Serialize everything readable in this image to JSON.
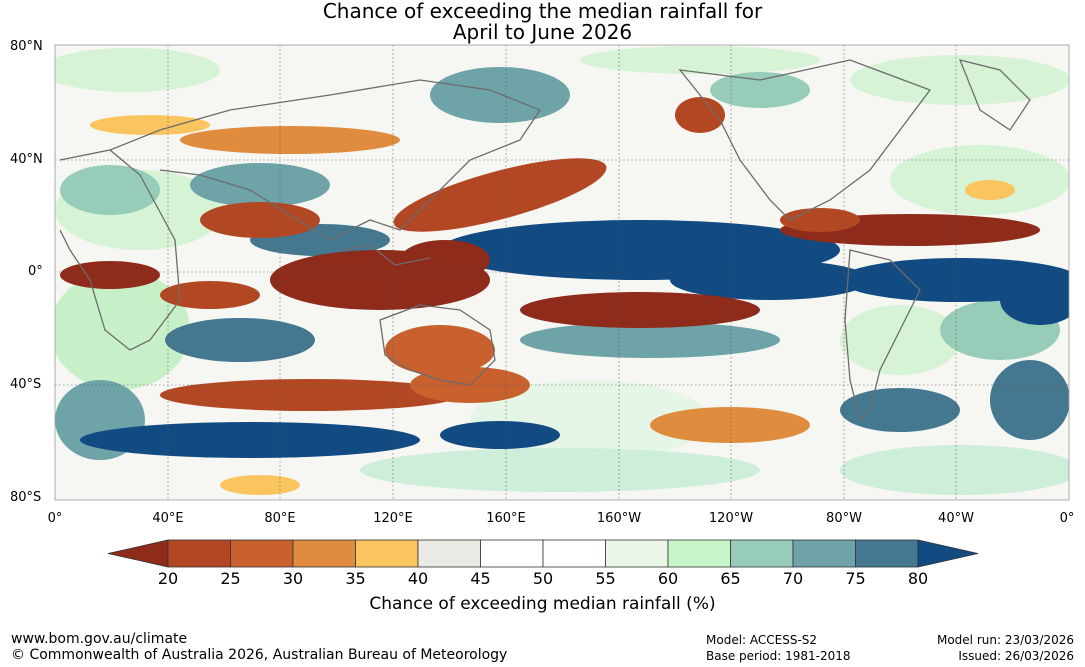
{
  "title_line1": "Chance of exceeding the median rainfall for",
  "title_line2": "April to June 2026",
  "lat_labels": [
    "80°N",
    "40°N",
    "0°",
    "40°S",
    "80°S"
  ],
  "lon_labels": [
    "0°",
    "40°E",
    "80°E",
    "120°E",
    "160°E",
    "160°W",
    "120°W",
    "80°W",
    "40°W",
    "0°"
  ],
  "colorbar": {
    "ticks": [
      "20",
      "25",
      "30",
      "35",
      "40",
      "45",
      "50",
      "55",
      "60",
      "65",
      "70",
      "75",
      "80"
    ],
    "colors": [
      "#8e2b1b",
      "#b24823",
      "#c9612e",
      "#e08c3e",
      "#fac55f",
      "#eaeae4",
      "#ffffff",
      "#ffffff",
      "#e9f6e8",
      "#c7f7c8",
      "#97cdb8",
      "#6ea3a8",
      "#447890",
      "#124a82"
    ],
    "title": "Chance of exceeding median rainfall (%)"
  },
  "footer": {
    "website": "www.bom.gov.au/climate",
    "copyright": "© Commonwealth of Australia 2026, Australian Bureau of Meteorology",
    "model": "Model: ACCESS-S2",
    "base_period": "Base period: 1981-2018",
    "model_run": "Model run: 23/03/2026",
    "issued": "Issued: 26/03/2026"
  }
}
